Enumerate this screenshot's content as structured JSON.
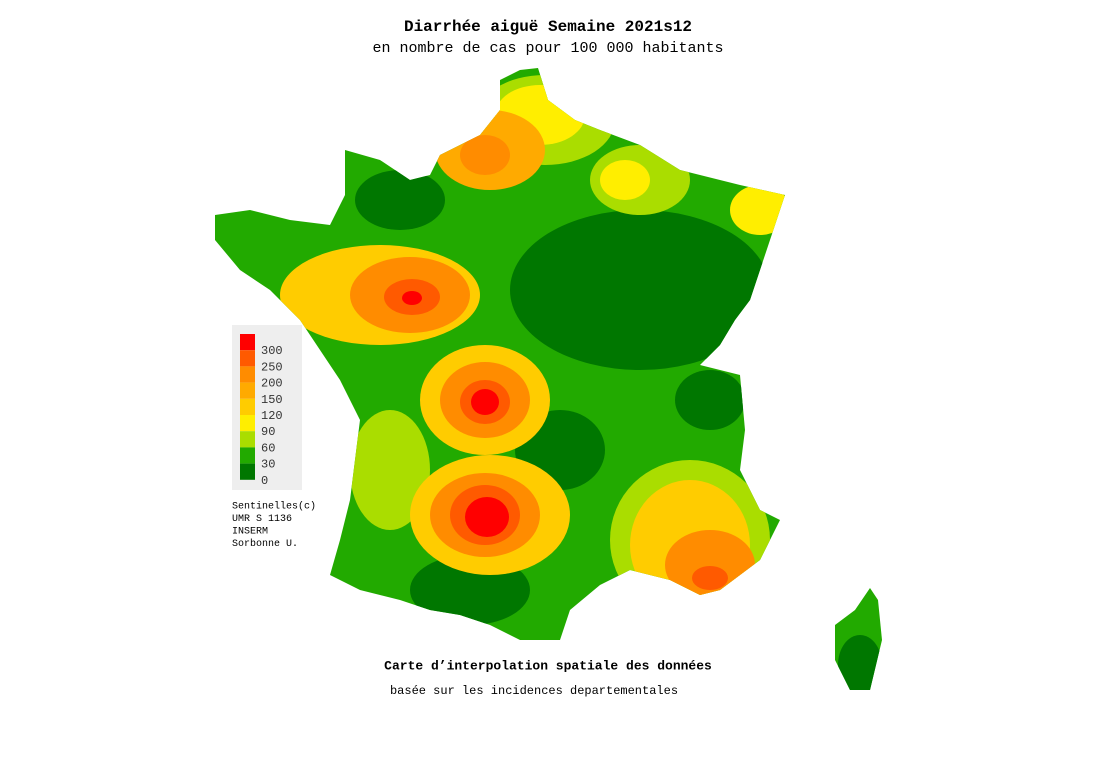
{
  "title": "Diarrhée aiguë Semaine 2021s12",
  "subtitle": "en nombre de cas pour 100 000 habitants",
  "legend": {
    "items": [
      {
        "value": 300,
        "color": "#ff0000"
      },
      {
        "value": 250,
        "color": "#ff5a00"
      },
      {
        "value": 200,
        "color": "#ff8c00"
      },
      {
        "value": 150,
        "color": "#ffaa00"
      },
      {
        "value": 120,
        "color": "#ffcc00"
      },
      {
        "value": 90,
        "color": "#ffee00"
      },
      {
        "value": 60,
        "color": "#aadd00"
      },
      {
        "value": 30,
        "color": "#22aa00"
      },
      {
        "value": 0,
        "color": "#007700"
      }
    ]
  },
  "credits": [
    "Sentinelles(c)",
    "UMR S 1136",
    "INSERM",
    "Sorbonne U."
  ],
  "footer": {
    "title": "Carte d’interpolation spatiale des données",
    "subtitle": "basée sur les incidences departementales"
  }
}
